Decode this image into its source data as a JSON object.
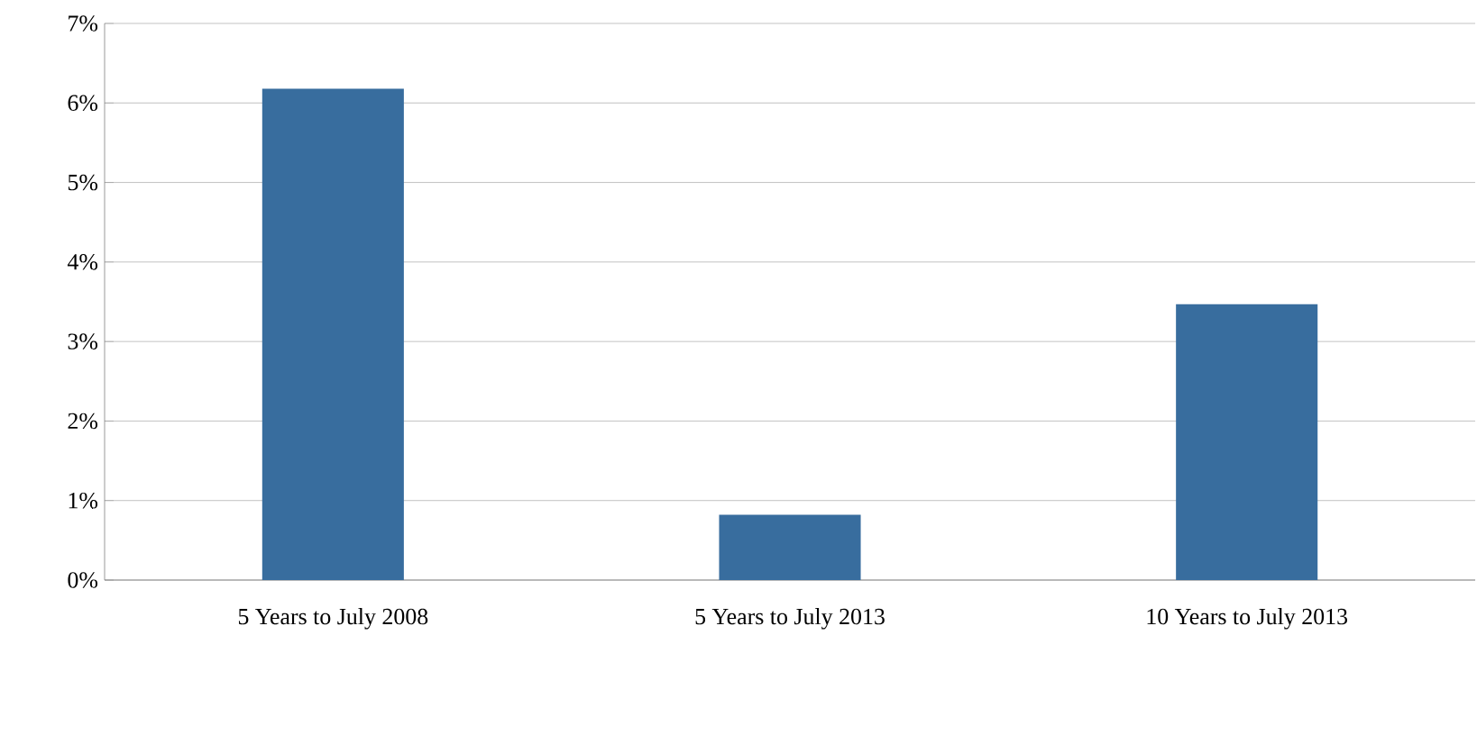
{
  "chart_data": {
    "type": "bar",
    "categories": [
      "5 Years to July 2008",
      "5 Years to July 2013",
      "10 Years to July 2013"
    ],
    "values": [
      6.18,
      0.82,
      3.47
    ],
    "color": "#386d9e",
    "ylim": [
      0,
      7
    ],
    "yticks": [
      {
        "value": 0,
        "label": "0%"
      },
      {
        "value": 1,
        "label": "1%"
      },
      {
        "value": 2,
        "label": "2%"
      },
      {
        "value": 3,
        "label": "3%"
      },
      {
        "value": 4,
        "label": "4%"
      },
      {
        "value": 5,
        "label": "5%"
      },
      {
        "value": 6,
        "label": "6%"
      },
      {
        "value": 7,
        "label": "7%"
      }
    ],
    "grid": "y"
  }
}
